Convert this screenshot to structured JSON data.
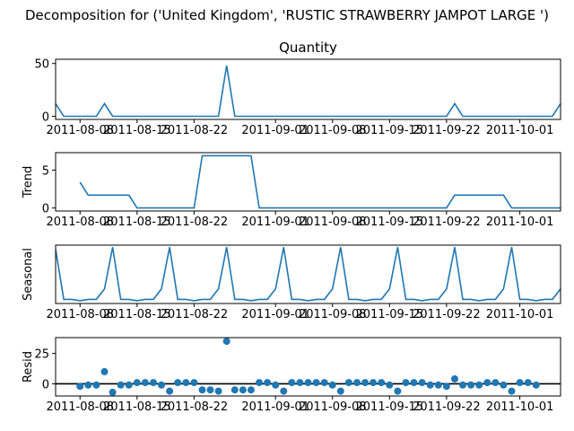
{
  "figure": {
    "suptitle": "Decomposition for ('United Kingdom', 'RUSTIC STRAWBERRY JAMPOT LARGE ')",
    "date_ticks": [
      "2011-08-08",
      "2011-08-15",
      "2011-08-22",
      "2011-09-01",
      "2011-09-08",
      "2011-09-15",
      "2011-09-22",
      "2011-10-01"
    ]
  },
  "colors": {
    "line": "#1f77b4",
    "zero_line": "#000000",
    "axes": "#000000"
  },
  "chart_data": [
    {
      "type": "line",
      "title": "Quantity",
      "ylabel": "",
      "x": [
        "2011-08-05",
        "2011-08-06",
        "2011-08-07",
        "2011-08-08",
        "2011-08-09",
        "2011-08-10",
        "2011-08-11",
        "2011-08-12",
        "2011-08-13",
        "2011-08-14",
        "2011-08-15",
        "2011-08-16",
        "2011-08-17",
        "2011-08-18",
        "2011-08-19",
        "2011-08-20",
        "2011-08-21",
        "2011-08-22",
        "2011-08-23",
        "2011-08-24",
        "2011-08-25",
        "2011-08-26",
        "2011-08-27",
        "2011-08-28",
        "2011-08-29",
        "2011-08-30",
        "2011-08-31",
        "2011-09-01",
        "2011-09-02",
        "2011-09-03",
        "2011-09-04",
        "2011-09-05",
        "2011-09-06",
        "2011-09-07",
        "2011-09-08",
        "2011-09-09",
        "2011-09-10",
        "2011-09-11",
        "2011-09-12",
        "2011-09-13",
        "2011-09-14",
        "2011-09-15",
        "2011-09-16",
        "2011-09-17",
        "2011-09-18",
        "2011-09-19",
        "2011-09-20",
        "2011-09-21",
        "2011-09-22",
        "2011-09-23",
        "2011-09-24",
        "2011-09-25",
        "2011-09-26",
        "2011-09-27",
        "2011-09-28",
        "2011-09-29",
        "2011-09-30",
        "2011-10-01",
        "2011-10-02",
        "2011-10-03",
        "2011-10-04",
        "2011-10-05",
        "2011-10-06"
      ],
      "values": [
        12,
        0,
        0,
        0,
        0,
        0,
        12,
        0,
        0,
        0,
        0,
        0,
        0,
        0,
        0,
        0,
        0,
        0,
        0,
        0,
        0,
        48,
        0,
        0,
        0,
        0,
        0,
        0,
        0,
        0,
        0,
        0,
        0,
        0,
        0,
        0,
        0,
        0,
        0,
        0,
        0,
        0,
        0,
        0,
        0,
        0,
        0,
        0,
        0,
        12,
        0,
        0,
        0,
        0,
        0,
        0,
        0,
        0,
        0,
        0,
        0,
        0,
        12
      ],
      "yticks": [
        0,
        50
      ],
      "ylim": [
        -3,
        54
      ],
      "grid": false
    },
    {
      "type": "line",
      "title": "",
      "ylabel": "Trend",
      "x_start": "2011-08-08",
      "values": [
        3.4,
        1.7,
        1.7,
        1.7,
        1.7,
        1.7,
        1.7,
        0,
        0,
        0,
        0,
        0,
        0,
        0,
        0,
        6.9,
        6.9,
        6.9,
        6.9,
        6.9,
        6.9,
        6.9,
        0,
        0,
        0,
        0,
        0,
        0,
        0,
        0,
        0,
        0,
        0,
        0,
        0,
        0,
        0,
        0,
        0,
        0,
        0,
        0,
        0,
        0,
        0,
        0,
        1.7,
        1.7,
        1.7,
        1.7,
        1.7,
        1.7,
        1.7,
        0,
        0,
        0,
        0,
        0,
        0,
        0,
        1.7
      ],
      "yticks": [
        0,
        5
      ],
      "ylim": [
        -0.4,
        7.3
      ],
      "grid": false
    },
    {
      "type": "line",
      "title": "",
      "ylabel": "Seasonal",
      "x_start": "2011-08-05",
      "values": [
        6.0,
        -1.2,
        -1.2,
        -1.4,
        -1.2,
        -1.2,
        0.3,
        6.3,
        -1.2,
        -1.2,
        -1.4,
        -1.2,
        -1.2,
        0.3,
        6.3,
        -1.2,
        -1.2,
        -1.4,
        -1.2,
        -1.2,
        0.3,
        6.3,
        -1.2,
        -1.2,
        -1.4,
        -1.2,
        -1.2,
        0.3,
        6.3,
        -1.2,
        -1.2,
        -1.4,
        -1.2,
        -1.2,
        0.3,
        6.3,
        -1.2,
        -1.2,
        -1.4,
        -1.2,
        -1.2,
        0.3,
        6.3,
        -1.2,
        -1.2,
        -1.4,
        -1.2,
        -1.2,
        0.3,
        6.3,
        -1.2,
        -1.2,
        -1.4,
        -1.2,
        -1.2,
        0.3,
        6.3,
        -1.2,
        -1.2,
        -1.4,
        -1.2,
        -1.2,
        0.3
      ],
      "yticks": [],
      "ylim": [
        -1.8,
        6.6
      ],
      "grid": false
    },
    {
      "type": "scatter",
      "title": "",
      "ylabel": "Resid",
      "x_start": "2011-08-08",
      "values": [
        -2,
        -1,
        -1,
        10,
        -7,
        -1,
        -1,
        1,
        1,
        1,
        -1,
        -6,
        1,
        1,
        1,
        -5,
        -5,
        -6,
        35,
        -5,
        -5,
        -5,
        1,
        1,
        -1,
        -6,
        1,
        1,
        1,
        1,
        1,
        -1,
        -6,
        1,
        1,
        1,
        1,
        1,
        -1,
        -6,
        1,
        1,
        1,
        -1,
        -1,
        -2,
        4,
        -1,
        -1,
        -1,
        1,
        1,
        -1,
        -6,
        1,
        1,
        -1
      ],
      "yticks": [
        0,
        25
      ],
      "ylim": [
        -10,
        38
      ],
      "zero_line": true,
      "grid": false
    }
  ]
}
